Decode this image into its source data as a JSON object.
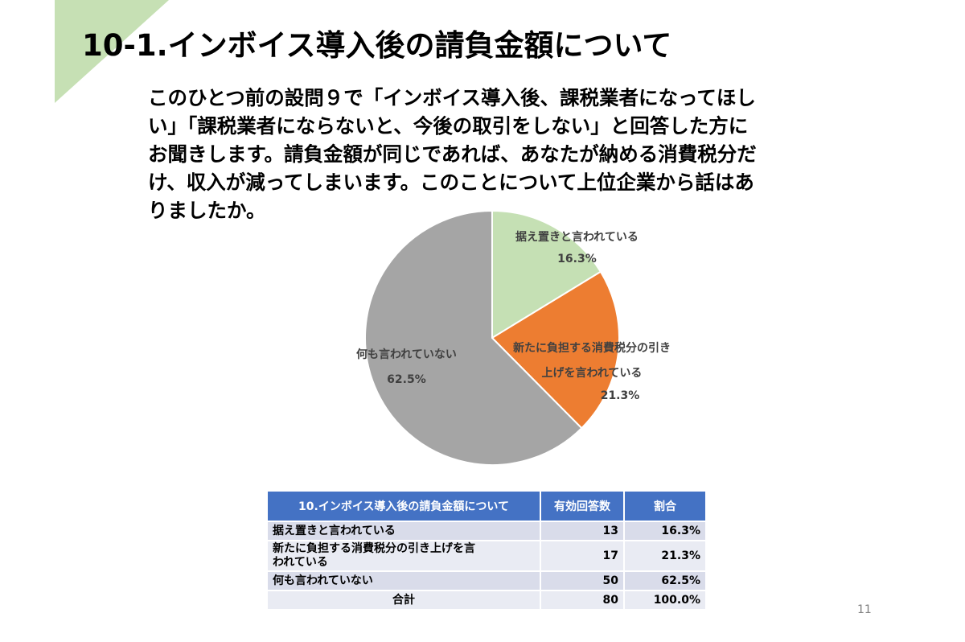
{
  "slide": {
    "title": "10-1.インボイス導入後の請負金額について",
    "question_lines": [
      "このひとつ前の設問９で「インボイス導入後、課税業者になってほし",
      "い」「課税業者にならないと、今後の取引をしない」と回答した方に",
      "お聞きします。請負金額が同じであれば、あなたが納める消費税分だ",
      "け、収入が減ってしまいます。このことについて上位企業から話はあ",
      "りましたか。"
    ],
    "page_number": "11",
    "accent_color": "#c6e0b4"
  },
  "chart_data": {
    "type": "pie",
    "slices": [
      {
        "label": "据え置きと言われている",
        "value": 16.3,
        "display": "16.3%",
        "color": "#c5e0b4"
      },
      {
        "label": "新たに負担する消費税分の引き上げを言われている",
        "label_lines": [
          "新たに負担する消費税分の引き",
          "上げを言われている"
        ],
        "value": 21.3,
        "display": "21.3%",
        "color": "#ed7d31"
      },
      {
        "label": "何も言われていない",
        "value": 62.5,
        "display": "62.5%",
        "color": "#a5a5a5"
      }
    ]
  },
  "table": {
    "headers": [
      "10.インボイス導入後の請負金額について",
      "有効回答数",
      "割合"
    ],
    "rows": [
      {
        "label": "据え置きと言われている",
        "count": "13",
        "pct": "16.3%"
      },
      {
        "label_lines": [
          "新たに負担する消費税分の引き上げを言",
          "われている"
        ],
        "count": "17",
        "pct": "21.3%"
      },
      {
        "label": "何も言われていない",
        "count": "50",
        "pct": "62.5%"
      }
    ],
    "total": {
      "label": "合計",
      "count": "80",
      "pct": "100.0%"
    }
  }
}
